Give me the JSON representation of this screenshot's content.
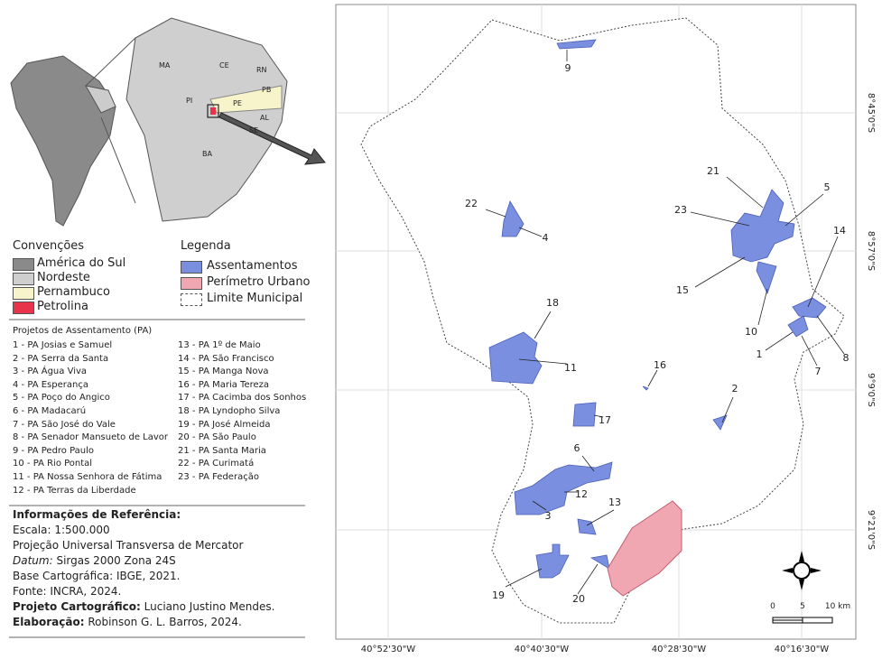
{
  "inset": {
    "state_labels": [
      "MA",
      "CE",
      "RN",
      "PI",
      "PB",
      "PE",
      "AL",
      "SE",
      "BA"
    ]
  },
  "conventions": {
    "title": "Convenções",
    "items": [
      "América do Sul",
      "Nordeste",
      "Pernambuco",
      "Petrolina"
    ]
  },
  "legend": {
    "title": "Legenda",
    "items": [
      "Assentamentos",
      "Perímetro Urbano",
      "Limite Municipal"
    ]
  },
  "projects": {
    "title": "Projetos de Assentamento (PA)",
    "items": [
      "1 - PA Josias e Samuel",
      "2 - PA Serra da Santa",
      "3 - PA Água Viva",
      "4 - PA Esperança",
      "5 - PA Poço do Angico",
      "6 - PA Madacarú",
      "7 - PA São José do Vale",
      "8 - PA Senador Mansueto de Lavor",
      "9 - PA Pedro Paulo",
      "10 - PA Rio Pontal",
      "11 - PA Nossa Senhora de Fátima",
      "12 - PA Terras da Liberdade",
      "13 - PA 1º de Maio",
      "14 - PA São Francisco",
      "15 - PA Manga Nova",
      "16 - PA Maria Tereza",
      "17 - PA Cacimba dos Sonhos",
      "18 - PA Lyndopho Silva",
      "19 - PA José Almeida",
      "20 - PA São Paulo",
      "21 - PA Santa Maria",
      "22 - PA Curimatá",
      "23 - PA Federação"
    ]
  },
  "reference": {
    "title": "Informações de Referência:",
    "scale": "Escala: 1:500.000",
    "projection": "Projeção Universal Transversa de Mercator",
    "datum": {
      "label": "Datum:",
      "text": "Sirgas 2000 Zona 24S"
    },
    "base": "Base Cartográfica: IBGE, 2021.",
    "source": "Fonte: INCRA, 2024.",
    "cartographer": {
      "label": "Projeto Cartográfico:",
      "text": "Luciano Justino Mendes."
    },
    "author": {
      "label": "Elaboração:",
      "text": "Robinson G. L. Barros, 2024."
    }
  },
  "map": {
    "x_labels": [
      "40°52'30\"W",
      "40°40'30\"W",
      "40°28'30\"W",
      "40°16'30\"W"
    ],
    "y_labels": [
      "8°45'0\"S",
      "8°57'0\"S",
      "9°9'0\"S",
      "9°21'0\"S"
    ],
    "area_labels": [
      "9",
      "22",
      "4",
      "21",
      "5",
      "23",
      "14",
      "15",
      "10",
      "1",
      "7",
      "8",
      "18",
      "11",
      "16",
      "2",
      "17",
      "6",
      "12",
      "13",
      "3",
      "19",
      "20"
    ],
    "scale_labels": [
      "0",
      "5",
      "10 km"
    ]
  }
}
